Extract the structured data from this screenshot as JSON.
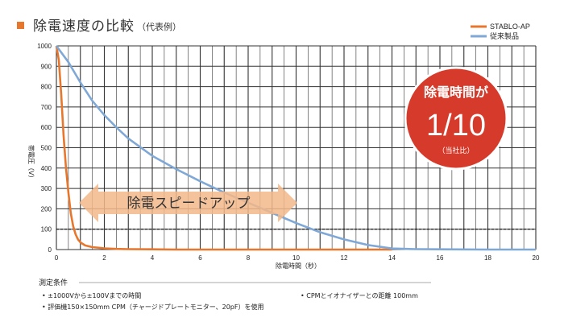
{
  "chart_data": {
    "type": "line",
    "title": "除電速度の比較",
    "subtitle": "（代表例）",
    "xlabel": "除電時間（秒）",
    "ylabel": "帯電圧（V）",
    "xlim": [
      0,
      20
    ],
    "ylim": [
      0,
      1000
    ],
    "x_ticks": [
      "0",
      "2",
      "4",
      "6",
      "8",
      "10",
      "12",
      "14",
      "16",
      "18",
      "20"
    ],
    "y_ticks": [
      "0",
      "100",
      "200",
      "300",
      "400",
      "500",
      "600",
      "700",
      "800",
      "900",
      "1000"
    ],
    "grid": true,
    "legend_position": "top-right",
    "series": [
      {
        "name": "STABLO-AP",
        "color": "#e8772e",
        "x": [
          0,
          0.1,
          0.2,
          0.3,
          0.4,
          0.5,
          0.6,
          0.7,
          0.8,
          0.9,
          1.0,
          1.2,
          1.5,
          2.0,
          2.5,
          3,
          4,
          5,
          6,
          8,
          10,
          12,
          14
        ],
        "y": [
          1000,
          930,
          760,
          560,
          400,
          280,
          180,
          115,
          75,
          50,
          35,
          20,
          12,
          6,
          3,
          2,
          1,
          0,
          0,
          0,
          0,
          0,
          0
        ]
      },
      {
        "name": "従来製品",
        "color": "#7fa8d6",
        "x": [
          0,
          0.5,
          1,
          1.5,
          2,
          2.5,
          3,
          4,
          5,
          6,
          7,
          8,
          9,
          10,
          11,
          12,
          13,
          14,
          15,
          16,
          18,
          20
        ],
        "y": [
          1000,
          920,
          820,
          730,
          660,
          600,
          545,
          460,
          395,
          335,
          280,
          230,
          180,
          130,
          85,
          50,
          22,
          5,
          2,
          1,
          0,
          0
        ]
      }
    ],
    "annotations": {
      "badge_line1": "除電時間が",
      "badge_line2": "1/10",
      "badge_line3": "（当社比）",
      "badge_color": "#d63a2a",
      "arrow_text": "除電スピードアップ",
      "arrow_color": "#f3b88a"
    }
  },
  "notes": {
    "title": "測定条件",
    "items": [
      "• ±1000Vから±100Vまでの時間",
      "• 評価機150×150mm CPM（チャージドプレートモニター、20pF）を使用",
      "• CPMとイオナイザーとの距離 100mm"
    ]
  },
  "colors": {
    "title_marker": "#e8772e",
    "grid": "#333333"
  }
}
